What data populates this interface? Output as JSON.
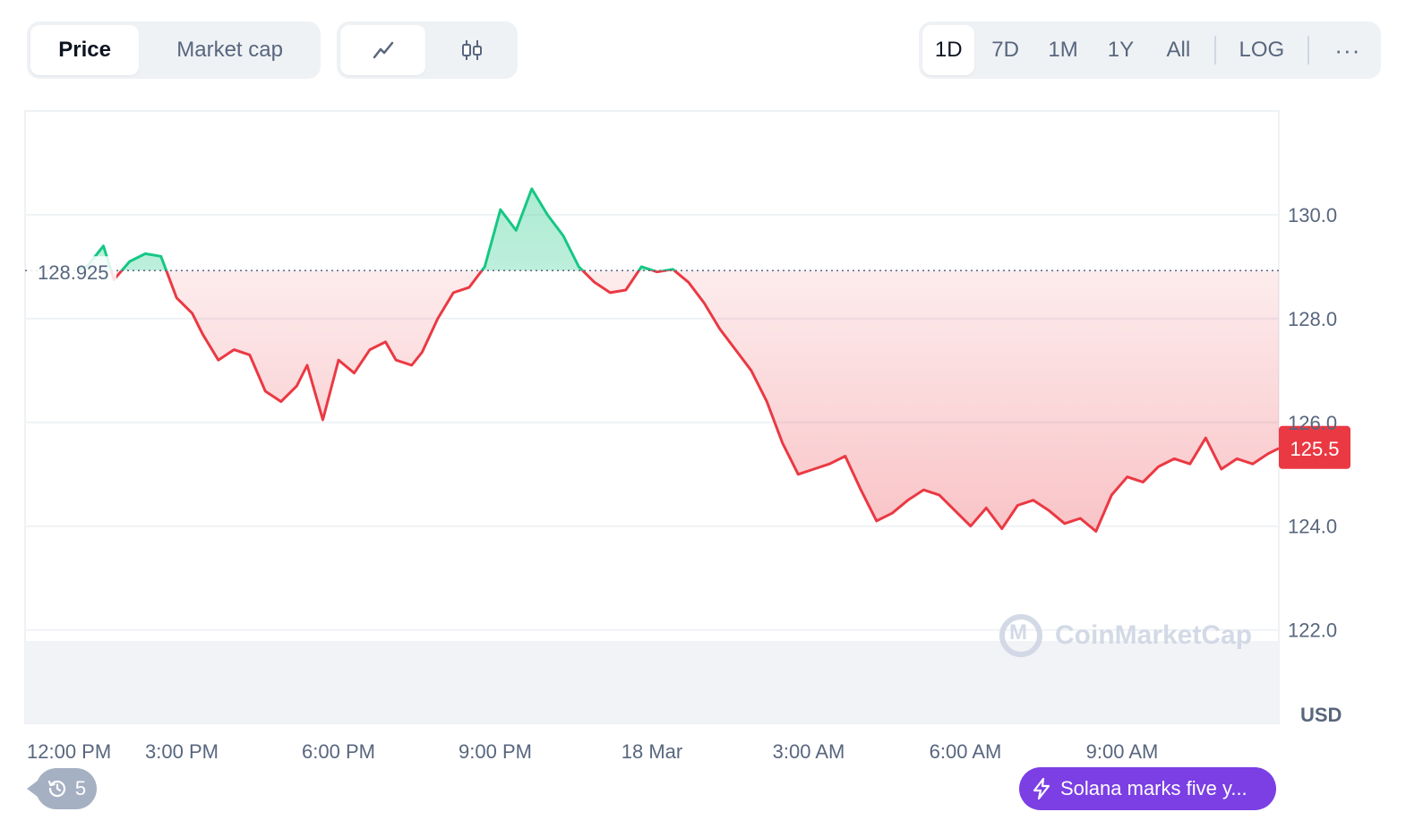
{
  "toolbar": {
    "type_options": [
      "Price",
      "Market cap"
    ],
    "type_active": "Price",
    "view_icons": [
      "line-chart-icon",
      "candlestick-icon"
    ],
    "ranges": [
      "1D",
      "7D",
      "1M",
      "1Y",
      "All"
    ],
    "range_active": "1D",
    "log_label": "LOG",
    "more_label": "···"
  },
  "colors": {
    "up": "#16c784",
    "down": "#ea3943",
    "accent": "#7b3fe4"
  },
  "chart_data": {
    "type": "line",
    "currency": "USD",
    "baseline": 128.925,
    "baseline_label": "128.925",
    "current_value": 125.5,
    "current_label": "125.5",
    "ylim": [
      120.2,
      132.0
    ],
    "yticks": [
      122.0,
      124.0,
      126.0,
      128.0,
      130.0
    ],
    "ytick_labels": [
      "122.0",
      "124.0",
      "126.0",
      "128.0",
      "130.0"
    ],
    "xlim": [
      0,
      24
    ],
    "xticks": [
      0,
      3,
      6,
      9,
      12,
      15,
      18,
      21
    ],
    "xtick_labels": [
      "12:00 PM",
      "3:00 PM",
      "6:00 PM",
      "9:00 PM",
      "18 Mar",
      "3:00 AM",
      "6:00 AM",
      "9:00 AM"
    ],
    "x_hours": [
      1.0,
      1.2,
      1.5,
      1.7,
      2.0,
      2.3,
      2.6,
      2.9,
      3.2,
      3.4,
      3.7,
      4.0,
      4.3,
      4.6,
      4.9,
      5.2,
      5.4,
      5.7,
      6.0,
      6.3,
      6.6,
      6.9,
      7.1,
      7.4,
      7.6,
      7.9,
      8.2,
      8.5,
      8.8,
      9.1,
      9.4,
      9.7,
      10.0,
      10.3,
      10.6,
      10.9,
      11.2,
      11.5,
      11.8,
      12.1,
      12.4,
      12.7,
      13.0,
      13.3,
      13.6,
      13.9,
      14.2,
      14.5,
      14.8,
      15.1,
      15.4,
      15.7,
      16.0,
      16.3,
      16.6,
      16.9,
      17.2,
      17.5,
      17.8,
      18.1,
      18.4,
      18.7,
      19.0,
      19.3,
      19.6,
      19.9,
      20.2,
      20.5,
      20.8,
      21.1,
      21.4,
      21.7,
      22.0,
      22.3,
      22.6,
      22.9,
      23.2,
      23.5,
      23.8,
      24.0
    ],
    "series": [
      {
        "values": [
          128.93,
          129.02,
          129.4,
          128.75,
          129.1,
          129.25,
          129.2,
          128.4,
          128.1,
          127.7,
          127.2,
          127.4,
          127.3,
          126.6,
          126.4,
          126.7,
          127.1,
          126.05,
          127.2,
          126.95,
          127.4,
          127.55,
          127.2,
          127.1,
          127.35,
          128.0,
          128.5,
          128.6,
          129.0,
          130.1,
          129.7,
          130.5,
          130.0,
          129.6,
          129.0,
          128.7,
          128.5,
          128.55,
          129.0,
          128.9,
          128.95,
          128.7,
          128.3,
          127.8,
          127.4,
          127.0,
          126.4,
          125.6,
          125.0,
          125.1,
          125.2,
          125.35,
          124.7,
          124.1,
          124.25,
          124.5,
          124.7,
          124.6,
          124.3,
          124.0,
          124.35,
          123.95,
          124.4,
          124.5,
          124.3,
          124.05,
          124.15,
          123.9,
          124.6,
          124.95,
          124.85,
          125.15,
          125.3,
          125.2,
          125.7,
          125.1,
          125.3,
          125.2,
          125.4,
          125.5
        ]
      }
    ],
    "title": "",
    "xlabel": "",
    "ylabel": "USD",
    "grid": true,
    "watermark": "CoinMarketCap"
  },
  "history_count": "5",
  "news": {
    "text": "Solana marks five y..."
  }
}
